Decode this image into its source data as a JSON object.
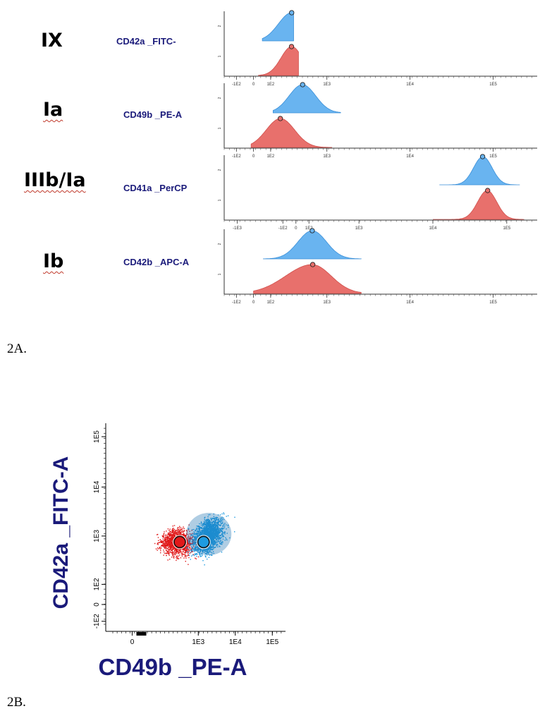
{
  "colors": {
    "blue": "#69b4f0",
    "blue_edge": "#3a8fd8",
    "red": "#e8706c",
    "red_edge": "#d0504c",
    "navy": "#1a1a7a"
  },
  "panel_a": {
    "caption": "2A.",
    "rows": [
      {
        "receptor": "IX",
        "marker": "CD42a _FITC-",
        "x_ticks": [
          "-1E2",
          "0",
          "1E2",
          "1E3",
          "1E4",
          "1E5"
        ],
        "blue": {
          "mode": 0.78,
          "width": 0.42,
          "span": [
            0.18,
            0.82
          ]
        },
        "red": {
          "mode": 0.78,
          "width": 0.34,
          "span": [
            0.1,
            0.92
          ]
        }
      },
      {
        "receptor": "Ia",
        "marker": "CD49b _PE-A",
        "x_ticks": [
          "-1E2",
          "0",
          "1E2",
          "1E3",
          "1E4",
          "1E5"
        ],
        "blue": {
          "mode": 1.0,
          "width": 0.42,
          "span": [
            0.4,
            1.78
          ]
        },
        "red": {
          "mode": 0.55,
          "width": 0.45,
          "span": [
            -0.05,
            1.6
          ]
        }
      },
      {
        "receptor": "IIIb/Ia",
        "marker": "CD41a _PerCP",
        "x_ticks": [
          "-1E3",
          "-1E2",
          "0",
          "1E2",
          "1E3",
          "1E4",
          "1E5"
        ],
        "blue": {
          "mode": 4.35,
          "width": 0.33,
          "span": [
            3.35,
            5.2
          ]
        },
        "red": {
          "mode": 4.45,
          "width": 0.34,
          "span": [
            3.2,
            5.3
          ]
        }
      },
      {
        "receptor": "Ib",
        "marker": "CD42b _APC-A",
        "x_ticks": [
          "-1E2",
          "0",
          "1E2",
          "1E3",
          "1E4",
          "1E5"
        ],
        "blue": {
          "mode": 1.2,
          "width": 0.45,
          "span": [
            0.2,
            2.2
          ]
        },
        "red": {
          "mode": 1.2,
          "width": 0.6,
          "span": [
            0.0,
            2.2
          ]
        }
      }
    ]
  },
  "panel_b": {
    "caption": "2B.",
    "chart_data": {
      "type": "scatter",
      "xlabel": "CD49b _PE-A",
      "ylabel": "CD42a _FITC-A",
      "x_ticks": [
        "0",
        "1E3",
        "1E4",
        "1E5"
      ],
      "y_ticks": [
        "-1E2",
        "0",
        "1E2",
        "1E3",
        "1E4",
        "1E5"
      ],
      "series": [
        {
          "name": "red population",
          "color": "#e0191a",
          "center": [
            0.6,
            0.73
          ],
          "spread": [
            0.45,
            0.28
          ]
        },
        {
          "name": "blue population",
          "color": "#1e9be0",
          "center": [
            1.05,
            0.8
          ],
          "spread": [
            0.5,
            0.35
          ]
        }
      ],
      "medians": [
        {
          "color": "#e0191a",
          "x": 0.6,
          "y": 0.73
        },
        {
          "color": "#1e9be0",
          "x": 1.05,
          "y": 0.73
        }
      ]
    }
  }
}
